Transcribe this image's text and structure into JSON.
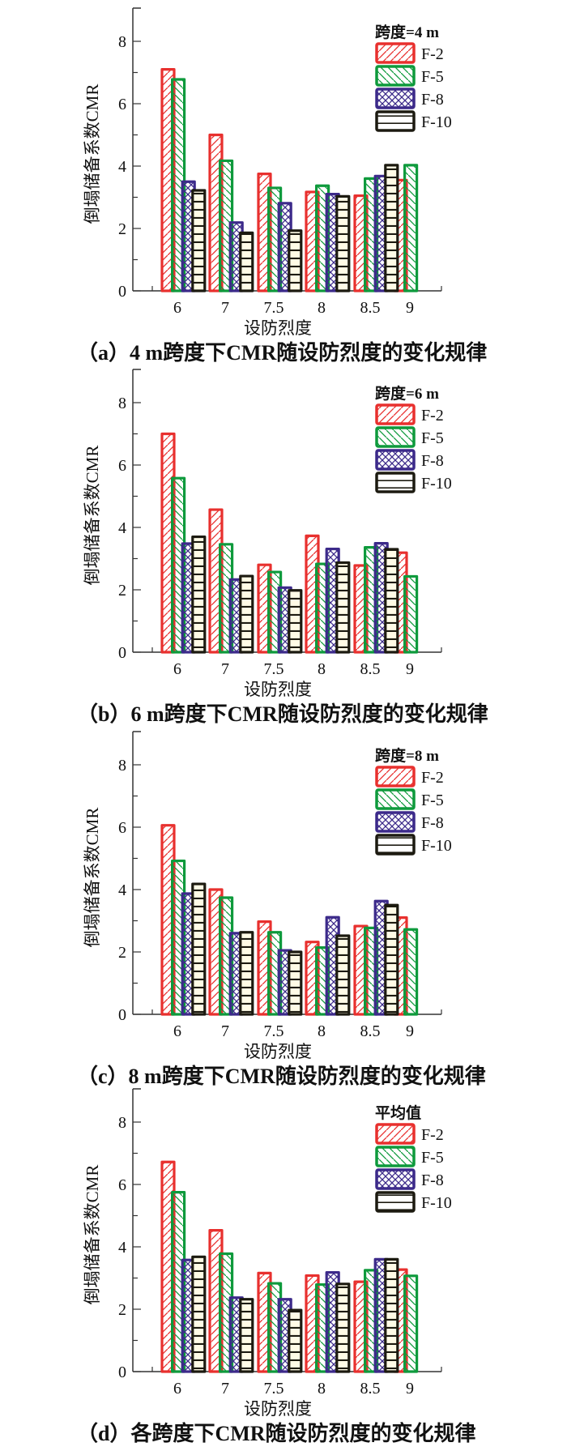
{
  "colors": {
    "F-2": "#e8302e",
    "F-5": "#0e9a3c",
    "F-8": "#3c2a8a",
    "F-10": "#1c1a10"
  },
  "chart_data": [
    {
      "type": "bar",
      "panel": "a",
      "caption": "（a）4 m跨度下CMR随设防烈度的变化规律",
      "legend_title": "跨度=4 m",
      "legend_position": "top-right",
      "xlabel": "设防烈度",
      "ylabel": "倒塌储备系数CMR",
      "ylim": [
        0,
        9
      ],
      "yticks": [
        0,
        2,
        4,
        6,
        8
      ],
      "grid": false,
      "categories": [
        "6",
        "7",
        "7.5",
        "8",
        "8.5",
        "9"
      ],
      "series": [
        {
          "name": "F-2",
          "pattern": "forward-hatch",
          "values": [
            7.1,
            5.0,
            3.75,
            3.17,
            3.05,
            3.55
          ]
        },
        {
          "name": "F-5",
          "pattern": "back-hatch",
          "values": [
            6.78,
            4.17,
            3.3,
            3.37,
            3.6,
            4.03
          ]
        },
        {
          "name": "F-8",
          "pattern": "cross-hatch",
          "values": [
            3.5,
            2.19,
            2.81,
            3.1,
            3.68,
            null
          ]
        },
        {
          "name": "F-10",
          "pattern": "grid",
          "values": [
            3.22,
            1.86,
            1.93,
            3.03,
            4.03,
            null
          ]
        }
      ]
    },
    {
      "type": "bar",
      "panel": "b",
      "caption": "（b）6 m跨度下CMR随设防烈度的变化规律",
      "legend_title": "跨度=6 m",
      "legend_position": "top-right",
      "xlabel": "设防烈度",
      "ylabel": "倒塌储备系数CMR",
      "ylim": [
        0,
        9
      ],
      "yticks": [
        0,
        2,
        4,
        6,
        8
      ],
      "grid": false,
      "categories": [
        "6",
        "7",
        "7.5",
        "8",
        "8.5",
        "9"
      ],
      "series": [
        {
          "name": "F-2",
          "pattern": "forward-hatch",
          "values": [
            7.0,
            4.57,
            2.8,
            3.73,
            2.78,
            3.19
          ]
        },
        {
          "name": "F-5",
          "pattern": "back-hatch",
          "values": [
            5.58,
            3.46,
            2.57,
            2.83,
            3.36,
            2.43
          ]
        },
        {
          "name": "F-8",
          "pattern": "cross-hatch",
          "values": [
            3.48,
            2.33,
            2.07,
            3.31,
            3.49,
            null
          ]
        },
        {
          "name": "F-10",
          "pattern": "grid",
          "values": [
            3.7,
            2.44,
            1.98,
            2.87,
            3.3,
            null
          ]
        }
      ]
    },
    {
      "type": "bar",
      "panel": "c",
      "caption": "（c）8 m跨度下CMR随设防烈度的变化规律",
      "legend_title": "跨度=8 m",
      "legend_position": "top-right",
      "xlabel": "设防烈度",
      "ylabel": "倒塌储备系数CMR",
      "ylim": [
        0,
        9
      ],
      "yticks": [
        0,
        2,
        4,
        6,
        8
      ],
      "grid": false,
      "categories": [
        "6",
        "7",
        "7.5",
        "8",
        "8.5",
        "9"
      ],
      "series": [
        {
          "name": "F-2",
          "pattern": "forward-hatch",
          "values": [
            6.06,
            4.0,
            2.97,
            2.32,
            2.83,
            3.1
          ]
        },
        {
          "name": "F-5",
          "pattern": "back-hatch",
          "values": [
            4.92,
            3.74,
            2.63,
            2.14,
            2.77,
            2.72
          ]
        },
        {
          "name": "F-8",
          "pattern": "cross-hatch",
          "values": [
            3.87,
            2.6,
            2.05,
            3.11,
            3.63,
            null
          ]
        },
        {
          "name": "F-10",
          "pattern": "grid",
          "values": [
            4.18,
            2.63,
            2.0,
            2.52,
            3.5,
            null
          ]
        }
      ]
    },
    {
      "type": "bar",
      "panel": "d",
      "caption": "（d）各跨度下CMR随设防烈度的变化规律",
      "legend_title": "平均值",
      "legend_position": "top-right",
      "xlabel": "设防烈度",
      "ylabel": "倒塌储备系数CMR",
      "ylim": [
        0,
        9
      ],
      "yticks": [
        0,
        2,
        4,
        6,
        8
      ],
      "grid": false,
      "categories": [
        "6",
        "7",
        "7.5",
        "8",
        "8.5",
        "9"
      ],
      "series": [
        {
          "name": "F-2",
          "pattern": "forward-hatch",
          "values": [
            6.72,
            4.53,
            3.16,
            3.08,
            2.88,
            3.27
          ]
        },
        {
          "name": "F-5",
          "pattern": "back-hatch",
          "values": [
            5.75,
            3.78,
            2.83,
            2.79,
            3.25,
            3.07
          ]
        },
        {
          "name": "F-8",
          "pattern": "cross-hatch",
          "values": [
            3.58,
            2.37,
            2.32,
            3.18,
            3.6,
            null
          ]
        },
        {
          "name": "F-10",
          "pattern": "grid",
          "values": [
            3.68,
            2.32,
            1.97,
            2.81,
            3.6,
            null
          ]
        }
      ]
    }
  ]
}
